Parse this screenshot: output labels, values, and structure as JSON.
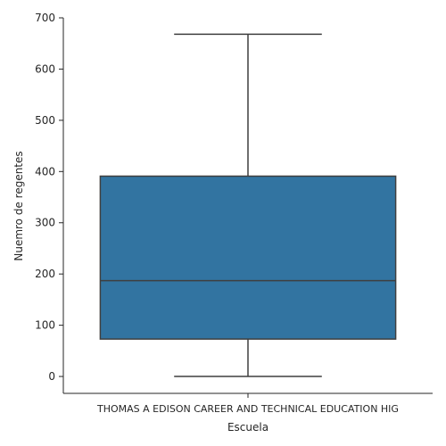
{
  "chart_data": {
    "type": "box",
    "categories": [
      "THOMAS A EDISON CAREER AND TECHNICAL EDUCATION HIG"
    ],
    "boxes": [
      {
        "category": "THOMAS A EDISON CAREER AND TECHNICAL EDUCATION HIG",
        "whisker_low": 0,
        "q1": 73,
        "median": 187,
        "q3": 391,
        "whisker_high": 668
      }
    ],
    "xlabel": "Escuela",
    "ylabel": "Nuemro de regentes",
    "ylim": [
      -33,
      700
    ],
    "yticks": [
      0,
      100,
      200,
      300,
      400,
      500,
      600,
      700
    ],
    "box_color": "#3274a1",
    "line_color": "#3f3f3f",
    "grid": false
  }
}
